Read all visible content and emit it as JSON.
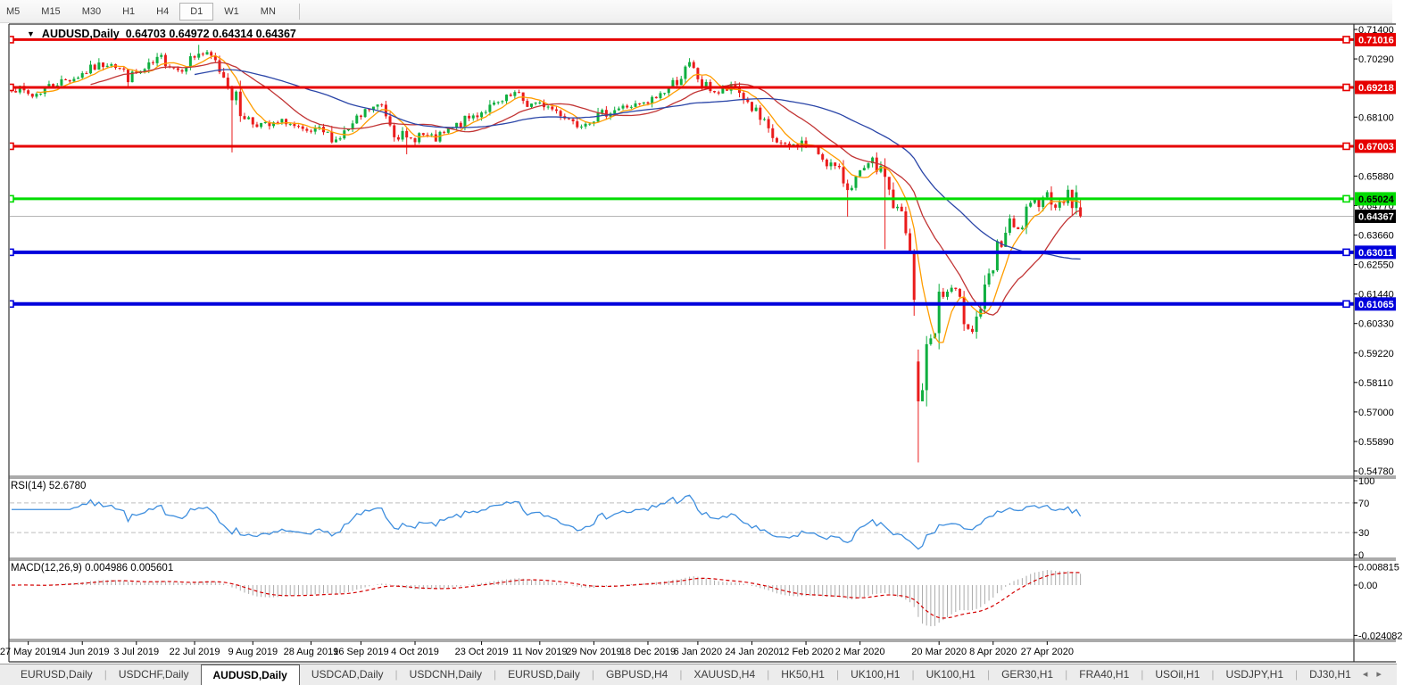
{
  "toolbar": {
    "timeframes": [
      "M5",
      "M15",
      "M30",
      "H1",
      "H4",
      "D1",
      "W1",
      "MN"
    ],
    "active": "D1"
  },
  "title": {
    "dropdown_icon": "▼",
    "symbol": "AUDUSD,Daily",
    "values": "0.64703 0.64972 0.64314 0.64367"
  },
  "rsi_label": "RSI(14) 52.6780",
  "macd_label": "MACD(12,26,9) 0.004986 0.005601",
  "tabs": {
    "items": [
      "EURUSD,Daily",
      "USDCHF,Daily",
      "AUDUSD,Daily",
      "USDCAD,Daily",
      "USDCNH,Daily",
      "EURUSD,Daily",
      "GBPUSD,H4",
      "XAUUSD,H4",
      "HK50,H1",
      "UK100,H1",
      "UK100,H1",
      "GER30,H1",
      "FRA40,H1",
      "USOil,H1",
      "USDJPY,H1",
      "DJ30,H1"
    ],
    "active_index": 2,
    "scroll_left_icon": "◂",
    "scroll_right_icon": "▸"
  },
  "chart_data": {
    "type": "candlestick",
    "symbol": "AUDUSD",
    "period": "Daily",
    "ohlc_display": {
      "open": 0.64703,
      "high": 0.64972,
      "low": 0.64314,
      "close": 0.64367
    },
    "price_range": {
      "top": 0.714,
      "bottom": 0.5478
    },
    "price_axis_labels": [
      "0.71400",
      "0.70290",
      "0.68100",
      "0.65880",
      "0.64770",
      "0.63660",
      "0.62550",
      "0.61440",
      "0.60330",
      "0.59220",
      "0.58110",
      "0.57000",
      "0.55890",
      "0.54780"
    ],
    "levels": [
      {
        "price": 0.71016,
        "label": "0.71016",
        "color": "#e60000",
        "text_color": "#ffffff",
        "kind": "resistance"
      },
      {
        "price": 0.69218,
        "label": "0.69218",
        "color": "#e60000",
        "text_color": "#ffffff",
        "kind": "resistance"
      },
      {
        "price": 0.67003,
        "label": "0.67003",
        "color": "#e60000",
        "text_color": "#ffffff",
        "kind": "resistance"
      },
      {
        "price": 0.65024,
        "label": "0.65024",
        "color": "#00dc00",
        "text_color": "#000000",
        "kind": "support"
      },
      {
        "price": 0.63011,
        "label": "0.63011",
        "color": "#0000dc",
        "text_color": "#ffffff",
        "kind": "support"
      },
      {
        "price": 0.61065,
        "label": "0.61065",
        "color": "#0000dc",
        "text_color": "#ffffff",
        "kind": "support"
      }
    ],
    "current_price": {
      "value": 0.64367,
      "label": "0.64367"
    },
    "bars_total": 258,
    "date_ticks": [
      {
        "bar": 4,
        "label": "27 May 2019"
      },
      {
        "bar": 17,
        "label": "14 Jun 2019"
      },
      {
        "bar": 30,
        "label": "3 Jul 2019"
      },
      {
        "bar": 44,
        "label": "22 Jul 2019"
      },
      {
        "bar": 58,
        "label": "9 Aug 2019"
      },
      {
        "bar": 72,
        "label": "28 Aug 2019"
      },
      {
        "bar": 84,
        "label": "16 Sep 2019"
      },
      {
        "bar": 97,
        "label": "4 Oct 2019"
      },
      {
        "bar": 113,
        "label": "23 Oct 2019"
      },
      {
        "bar": 127,
        "label": "11 Nov 2019"
      },
      {
        "bar": 140,
        "label": "29 Nov 2019"
      },
      {
        "bar": 153,
        "label": "18 Dec 2019"
      },
      {
        "bar": 165,
        "label": "6 Jan 2020"
      },
      {
        "bar": 178,
        "label": "24 Jan 2020"
      },
      {
        "bar": 191,
        "label": "12 Feb 2020"
      },
      {
        "bar": 204,
        "label": "2 Mar 2020"
      },
      {
        "bar": 223,
        "label": "20 Mar 2020"
      },
      {
        "bar": 236,
        "label": "8 Apr 2020"
      },
      {
        "bar": 249,
        "label": "27 Apr 2020"
      }
    ],
    "close_anchors": [
      [
        0,
        0.6925
      ],
      [
        5,
        0.689
      ],
      [
        10,
        0.6935
      ],
      [
        15,
        0.6958
      ],
      [
        20,
        0.6998
      ],
      [
        24,
        0.702
      ],
      [
        28,
        0.6962
      ],
      [
        32,
        0.6985
      ],
      [
        36,
        0.703
      ],
      [
        40,
        0.699
      ],
      [
        45,
        0.7052
      ],
      [
        48,
        0.7035
      ],
      [
        52,
        0.6945
      ],
      [
        55,
        0.683
      ],
      [
        58,
        0.679
      ],
      [
        62,
        0.6775
      ],
      [
        66,
        0.6795
      ],
      [
        70,
        0.6745
      ],
      [
        74,
        0.676
      ],
      [
        78,
        0.6725
      ],
      [
        82,
        0.6775
      ],
      [
        86,
        0.684
      ],
      [
        89,
        0.6855
      ],
      [
        92,
        0.677
      ],
      [
        95,
        0.6715
      ],
      [
        98,
        0.6745
      ],
      [
        102,
        0.6725
      ],
      [
        106,
        0.6765
      ],
      [
        110,
        0.6805
      ],
      [
        114,
        0.684
      ],
      [
        118,
        0.6865
      ],
      [
        121,
        0.6895
      ],
      [
        124,
        0.686
      ],
      [
        128,
        0.6855
      ],
      [
        132,
        0.6825
      ],
      [
        136,
        0.6785
      ],
      [
        140,
        0.6805
      ],
      [
        144,
        0.6835
      ],
      [
        148,
        0.685
      ],
      [
        153,
        0.686
      ],
      [
        157,
        0.691
      ],
      [
        160,
        0.695
      ],
      [
        163,
        0.7
      ],
      [
        166,
        0.6935
      ],
      [
        170,
        0.69
      ],
      [
        174,
        0.6925
      ],
      [
        178,
        0.6845
      ],
      [
        182,
        0.6745
      ],
      [
        186,
        0.669
      ],
      [
        190,
        0.6715
      ],
      [
        194,
        0.6675
      ],
      [
        198,
        0.6615
      ],
      [
        201,
        0.655
      ],
      [
        204,
        0.659
      ],
      [
        207,
        0.6635
      ],
      [
        210,
        0.6585
      ],
      [
        212,
        0.648
      ],
      [
        214,
        0.644
      ],
      [
        216,
        0.626
      ],
      [
        217,
        0.608
      ],
      [
        218,
        0.574
      ],
      [
        219,
        0.582
      ],
      [
        221,
        0.598
      ],
      [
        223,
        0.612
      ],
      [
        226,
        0.6165
      ],
      [
        229,
        0.606
      ],
      [
        231,
        0.6015
      ],
      [
        234,
        0.614
      ],
      [
        236,
        0.623
      ],
      [
        238,
        0.635
      ],
      [
        240,
        0.64
      ],
      [
        242,
        0.6375
      ],
      [
        244,
        0.644
      ],
      [
        246,
        0.648
      ],
      [
        248,
        0.653
      ],
      [
        250,
        0.65
      ],
      [
        252,
        0.6475
      ],
      [
        254,
        0.653
      ],
      [
        255,
        0.649
      ],
      [
        256,
        0.651
      ],
      [
        257,
        0.64367
      ]
    ],
    "overrides": {
      "45": {
        "h": 0.7082
      },
      "53": {
        "l": 0.6677
      },
      "95": {
        "l": 0.667
      },
      "163": {
        "h": 0.7032
      },
      "201": {
        "l": 0.6435
      },
      "210": {
        "o": 0.6625,
        "h": 0.6655,
        "l": 0.6313,
        "c": 0.6585
      },
      "218": {
        "o": 0.589,
        "h": 0.5935,
        "l": 0.551,
        "c": 0.574
      },
      "257": {
        "o": 0.64703,
        "h": 0.64972,
        "l": 0.64314,
        "c": 0.64367
      }
    },
    "ma_periods": [
      7,
      20,
      45
    ],
    "colors": {
      "up": "#0faf3f",
      "down": "#ea1c1c",
      "ma_fast": "#ff9d00",
      "ma_mid": "#c23535",
      "ma_slow": "#2b46a8",
      "rsi": "#3e8ede",
      "rsi_level": "#bdbdbd",
      "macd_hist": "#ababab",
      "macd_signal": "#d40000",
      "current_line": "#b5b5b5",
      "frame": "#333333",
      "separator": "#555555"
    },
    "rsi": {
      "period": 14,
      "value": 52.678,
      "levels": [
        70,
        30
      ],
      "axis_labels": [
        "100",
        "70",
        "30",
        "0"
      ],
      "axis_values": [
        100,
        70,
        30,
        0
      ]
    },
    "macd": {
      "fast": 12,
      "slow": 26,
      "signal_period": 9,
      "value": 0.004986,
      "signal_value": 0.005601,
      "axis": {
        "max_label": "0.008815",
        "zero_label": "0.00",
        "min_label": "-0.024082"
      },
      "range": {
        "max": 0.008815,
        "min": -0.024082
      }
    }
  }
}
